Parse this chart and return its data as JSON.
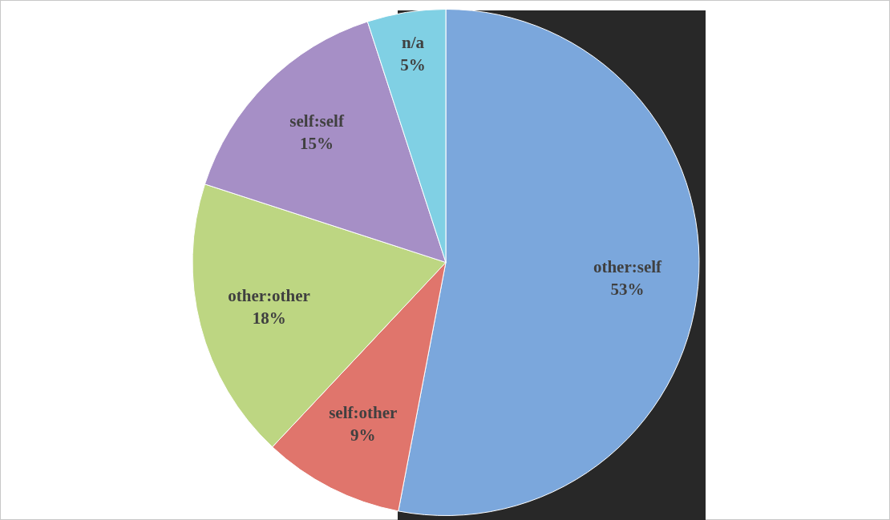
{
  "chart_data": {
    "type": "pie",
    "categories": [
      "other:self",
      "self:other",
      "other:other",
      "self:self",
      "n/a"
    ],
    "values": [
      53,
      9,
      18,
      15,
      5
    ],
    "value_labels": [
      "53%",
      "9%",
      "18%",
      "15%",
      "5%"
    ],
    "colors": [
      "#7ba7dc",
      "#e0756c",
      "#bdd682",
      "#a68fc6",
      "#80d0e4"
    ],
    "legend": false
  }
}
